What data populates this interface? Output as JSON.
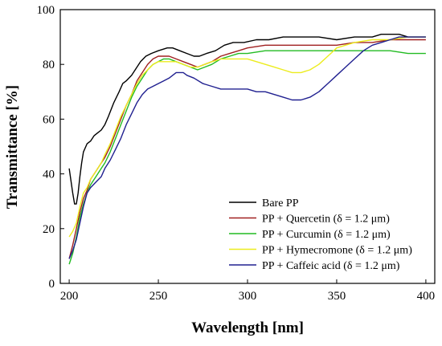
{
  "chart_data": {
    "type": "line",
    "xlabel": "Wavelength [nm]",
    "ylabel": "Transmittance [%]",
    "xlim": [
      195,
      405
    ],
    "ylim": [
      0,
      100
    ],
    "x_ticks": [
      200,
      250,
      300,
      350,
      400
    ],
    "y_ticks": [
      0,
      20,
      40,
      60,
      80,
      100
    ],
    "grid": false,
    "legend_position": "bottom-right",
    "series": [
      {
        "name": "Bare PP",
        "color": "#000000",
        "points": [
          [
            200,
            42
          ],
          [
            202,
            33
          ],
          [
            203,
            29
          ],
          [
            204,
            29
          ],
          [
            205,
            33
          ],
          [
            206,
            39
          ],
          [
            207,
            44
          ],
          [
            208,
            48
          ],
          [
            210,
            51
          ],
          [
            212,
            52
          ],
          [
            214,
            54
          ],
          [
            216,
            55
          ],
          [
            218,
            56
          ],
          [
            220,
            58
          ],
          [
            222,
            61
          ],
          [
            225,
            66
          ],
          [
            228,
            70
          ],
          [
            230,
            73
          ],
          [
            232,
            74
          ],
          [
            235,
            76
          ],
          [
            238,
            79
          ],
          [
            240,
            81
          ],
          [
            243,
            83
          ],
          [
            246,
            84
          ],
          [
            250,
            85
          ],
          [
            255,
            86
          ],
          [
            258,
            86
          ],
          [
            262,
            85
          ],
          [
            266,
            84
          ],
          [
            270,
            83
          ],
          [
            273,
            83
          ],
          [
            277,
            84
          ],
          [
            282,
            85
          ],
          [
            287,
            87
          ],
          [
            292,
            88
          ],
          [
            298,
            88
          ],
          [
            305,
            89
          ],
          [
            312,
            89
          ],
          [
            320,
            90
          ],
          [
            330,
            90
          ],
          [
            340,
            90
          ],
          [
            350,
            89
          ],
          [
            360,
            90
          ],
          [
            370,
            90
          ],
          [
            375,
            91
          ],
          [
            380,
            91
          ],
          [
            385,
            91
          ],
          [
            390,
            90
          ],
          [
            395,
            90
          ],
          [
            400,
            90
          ]
        ]
      },
      {
        "name": "PP + Quercetin (δ = 1.2 μm)",
        "color": "#a02020",
        "points": [
          [
            200,
            9
          ],
          [
            202,
            14
          ],
          [
            204,
            20
          ],
          [
            206,
            26
          ],
          [
            208,
            31
          ],
          [
            210,
            34
          ],
          [
            212,
            38
          ],
          [
            215,
            41
          ],
          [
            218,
            44
          ],
          [
            220,
            46
          ],
          [
            223,
            50
          ],
          [
            226,
            55
          ],
          [
            229,
            60
          ],
          [
            232,
            65
          ],
          [
            235,
            69
          ],
          [
            238,
            74
          ],
          [
            241,
            77
          ],
          [
            244,
            80
          ],
          [
            247,
            82
          ],
          [
            250,
            83
          ],
          [
            253,
            83
          ],
          [
            256,
            83
          ],
          [
            260,
            82
          ],
          [
            264,
            81
          ],
          [
            268,
            80
          ],
          [
            272,
            79
          ],
          [
            276,
            80
          ],
          [
            280,
            81
          ],
          [
            285,
            83
          ],
          [
            290,
            84
          ],
          [
            295,
            85
          ],
          [
            300,
            86
          ],
          [
            310,
            87
          ],
          [
            320,
            87
          ],
          [
            330,
            87
          ],
          [
            340,
            87
          ],
          [
            350,
            87
          ],
          [
            360,
            88
          ],
          [
            370,
            88
          ],
          [
            380,
            89
          ],
          [
            390,
            89
          ],
          [
            400,
            89
          ]
        ]
      },
      {
        "name": "PP + Curcumin (δ = 1.2 μm)",
        "color": "#22bb22",
        "points": [
          [
            200,
            7
          ],
          [
            202,
            11
          ],
          [
            204,
            17
          ],
          [
            206,
            24
          ],
          [
            208,
            29
          ],
          [
            210,
            33
          ],
          [
            212,
            36
          ],
          [
            215,
            39
          ],
          [
            218,
            42
          ],
          [
            220,
            44
          ],
          [
            223,
            48
          ],
          [
            226,
            53
          ],
          [
            229,
            58
          ],
          [
            232,
            63
          ],
          [
            235,
            68
          ],
          [
            238,
            72
          ],
          [
            241,
            75
          ],
          [
            244,
            78
          ],
          [
            247,
            80
          ],
          [
            250,
            81
          ],
          [
            253,
            82
          ],
          [
            256,
            82
          ],
          [
            260,
            81
          ],
          [
            264,
            80
          ],
          [
            268,
            79
          ],
          [
            272,
            78
          ],
          [
            276,
            79
          ],
          [
            280,
            80
          ],
          [
            285,
            82
          ],
          [
            290,
            83
          ],
          [
            295,
            84
          ],
          [
            300,
            84
          ],
          [
            310,
            85
          ],
          [
            320,
            85
          ],
          [
            330,
            85
          ],
          [
            340,
            85
          ],
          [
            350,
            85
          ],
          [
            360,
            85
          ],
          [
            370,
            85
          ],
          [
            380,
            85
          ],
          [
            390,
            84
          ],
          [
            400,
            84
          ]
        ]
      },
      {
        "name": "PP + Hymecromone (δ = 1.2 μm)",
        "color": "#ecec1e",
        "points": [
          [
            200,
            17
          ],
          [
            202,
            19
          ],
          [
            204,
            22
          ],
          [
            206,
            28
          ],
          [
            208,
            33
          ],
          [
            210,
            35
          ],
          [
            212,
            38
          ],
          [
            215,
            41
          ],
          [
            218,
            44
          ],
          [
            220,
            47
          ],
          [
            223,
            51
          ],
          [
            226,
            56
          ],
          [
            229,
            61
          ],
          [
            232,
            65
          ],
          [
            235,
            69
          ],
          [
            238,
            73
          ],
          [
            241,
            76
          ],
          [
            244,
            78
          ],
          [
            247,
            80
          ],
          [
            250,
            81
          ],
          [
            253,
            81
          ],
          [
            256,
            81
          ],
          [
            260,
            81
          ],
          [
            264,
            80
          ],
          [
            268,
            79
          ],
          [
            272,
            79
          ],
          [
            276,
            80
          ],
          [
            280,
            81
          ],
          [
            285,
            82
          ],
          [
            290,
            82
          ],
          [
            295,
            82
          ],
          [
            300,
            82
          ],
          [
            305,
            81
          ],
          [
            310,
            80
          ],
          [
            315,
            79
          ],
          [
            320,
            78
          ],
          [
            325,
            77
          ],
          [
            330,
            77
          ],
          [
            335,
            78
          ],
          [
            340,
            80
          ],
          [
            345,
            83
          ],
          [
            350,
            86
          ],
          [
            355,
            87
          ],
          [
            360,
            88
          ],
          [
            370,
            89
          ],
          [
            380,
            89
          ],
          [
            390,
            90
          ],
          [
            400,
            90
          ]
        ]
      },
      {
        "name": "PP + Caffeic acid (δ = 1.2 μm)",
        "color": "#202090",
        "points": [
          [
            200,
            9
          ],
          [
            202,
            12
          ],
          [
            204,
            16
          ],
          [
            206,
            22
          ],
          [
            208,
            28
          ],
          [
            210,
            33
          ],
          [
            212,
            35
          ],
          [
            215,
            37
          ],
          [
            218,
            39
          ],
          [
            220,
            42
          ],
          [
            223,
            45
          ],
          [
            226,
            49
          ],
          [
            229,
            53
          ],
          [
            232,
            58
          ],
          [
            235,
            62
          ],
          [
            238,
            66
          ],
          [
            241,
            69
          ],
          [
            244,
            71
          ],
          [
            247,
            72
          ],
          [
            250,
            73
          ],
          [
            253,
            74
          ],
          [
            256,
            75
          ],
          [
            260,
            77
          ],
          [
            264,
            77
          ],
          [
            266,
            76
          ],
          [
            270,
            75
          ],
          [
            275,
            73
          ],
          [
            280,
            72
          ],
          [
            285,
            71
          ],
          [
            290,
            71
          ],
          [
            295,
            71
          ],
          [
            300,
            71
          ],
          [
            305,
            70
          ],
          [
            310,
            70
          ],
          [
            315,
            69
          ],
          [
            320,
            68
          ],
          [
            325,
            67
          ],
          [
            330,
            67
          ],
          [
            335,
            68
          ],
          [
            340,
            70
          ],
          [
            345,
            73
          ],
          [
            350,
            76
          ],
          [
            355,
            79
          ],
          [
            360,
            82
          ],
          [
            365,
            85
          ],
          [
            370,
            87
          ],
          [
            375,
            88
          ],
          [
            380,
            89
          ],
          [
            385,
            90
          ],
          [
            390,
            90
          ],
          [
            395,
            90
          ],
          [
            400,
            90
          ]
        ]
      }
    ]
  }
}
